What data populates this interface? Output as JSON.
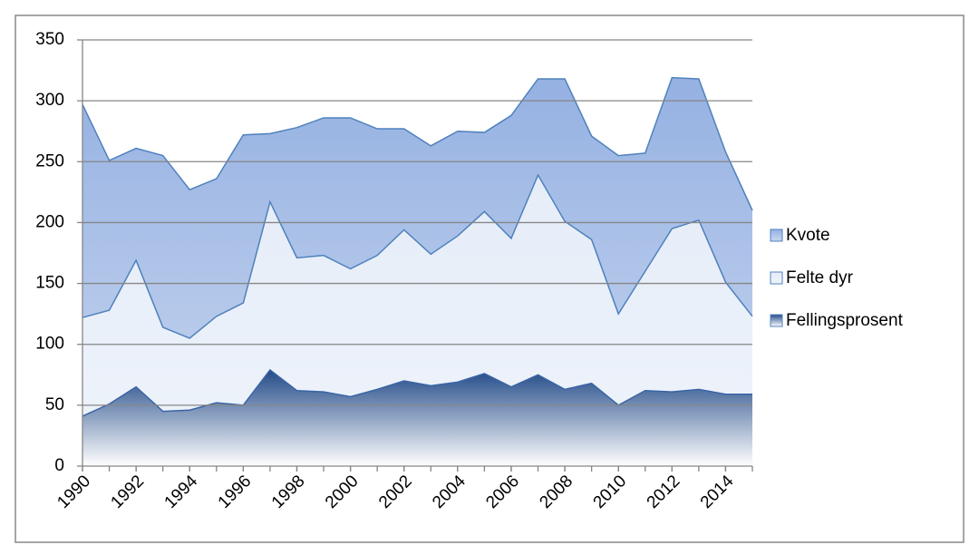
{
  "chart_data": {
    "type": "area",
    "x": [
      1990,
      1991,
      1992,
      1993,
      1994,
      1995,
      1996,
      1997,
      1998,
      1999,
      2000,
      2001,
      2002,
      2003,
      2004,
      2005,
      2006,
      2007,
      2008,
      2009,
      2010,
      2011,
      2012,
      2013,
      2014,
      2015
    ],
    "xlim": [
      1990,
      2015
    ],
    "xticks": [
      1990,
      1992,
      1994,
      1996,
      1998,
      2000,
      2002,
      2004,
      2006,
      2008,
      2010,
      2012,
      2014
    ],
    "ylim": [
      0,
      350
    ],
    "yticks": [
      0,
      50,
      100,
      150,
      200,
      250,
      300,
      350
    ],
    "grid": true,
    "legend": "right",
    "series": [
      {
        "name": "Kvote",
        "color": "#7f9fd8",
        "values": [
          297,
          251,
          261,
          255,
          227,
          236,
          272,
          273,
          278,
          286,
          286,
          277,
          277,
          263,
          275,
          274,
          288,
          318,
          318,
          271,
          255,
          257,
          319,
          318,
          258,
          210
        ]
      },
      {
        "name": "Felte dyr",
        "color": "#e8eef8",
        "values": [
          122,
          128,
          169,
          114,
          105,
          123,
          134,
          217,
          171,
          173,
          162,
          173,
          194,
          174,
          189,
          209,
          187,
          239,
          201,
          186,
          125,
          160,
          195,
          202,
          151,
          123
        ]
      },
      {
        "name": "Fellingsprosent",
        "color": "#2a5592",
        "values": [
          41,
          51,
          65,
          45,
          46,
          52,
          50,
          79,
          62,
          61,
          57,
          63,
          70,
          66,
          69,
          76,
          65,
          75,
          63,
          68,
          50,
          62,
          61,
          63,
          59,
          59
        ]
      }
    ]
  }
}
